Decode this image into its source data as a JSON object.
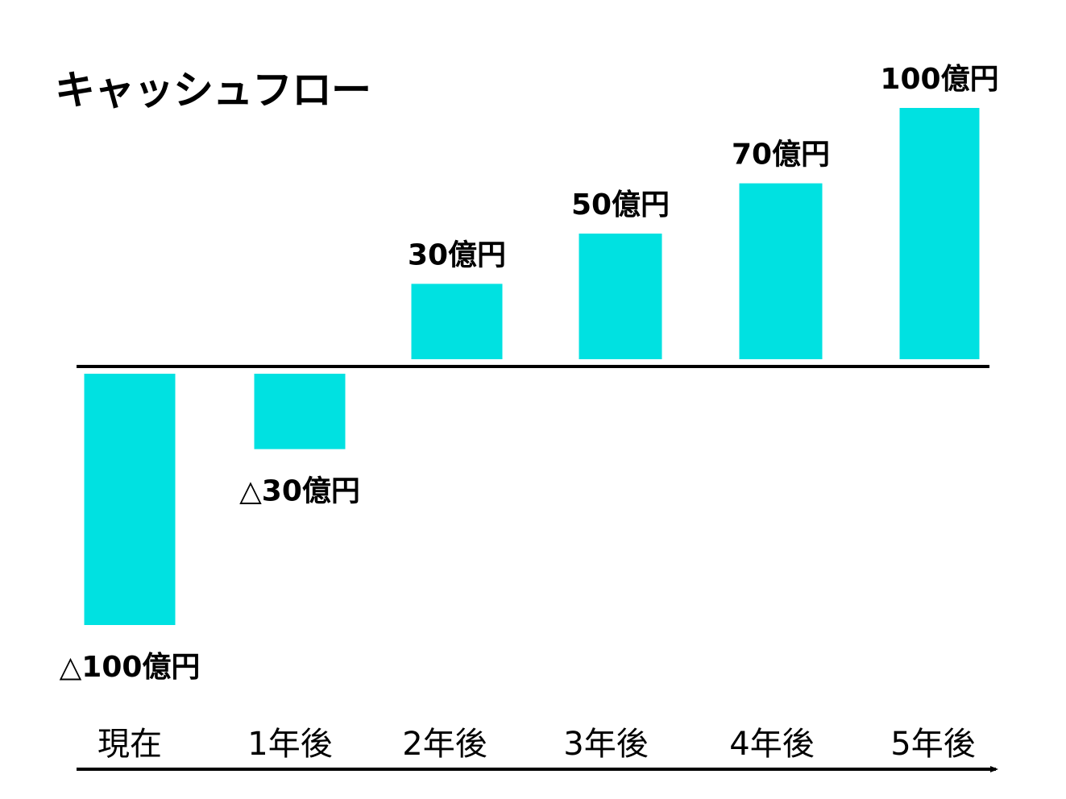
{
  "chart_data": {
    "type": "bar",
    "title": "キャッシュフロー",
    "categories": [
      "現在",
      "1年後",
      "2年後",
      "3年後",
      "4年後",
      "5年後"
    ],
    "values": [
      -100,
      -30,
      30,
      50,
      70,
      100
    ],
    "data_labels": [
      "△100億円",
      "△30億円",
      "30億円",
      "50億円",
      "70億円",
      "100億円"
    ],
    "unit": "億円",
    "ylim": [
      -100,
      100
    ],
    "grid": false,
    "legend": "none",
    "bar_color": "#00E1E1",
    "axis_color": "#000000"
  }
}
